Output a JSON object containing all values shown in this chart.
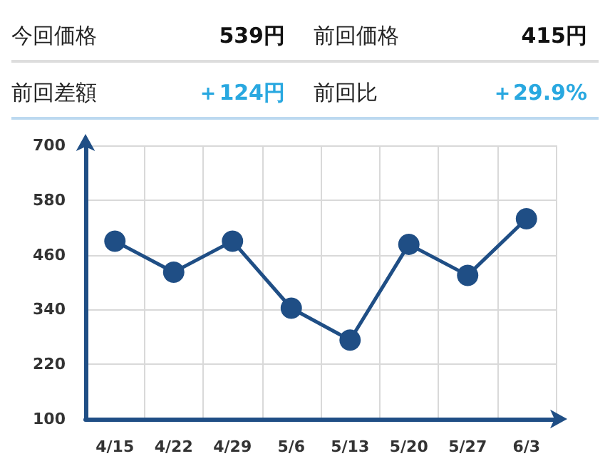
{
  "chart_data": {
    "type": "line",
    "annotations": [
      "今回価格",
      "539円",
      "前回価格",
      "415円",
      "前回差額",
      "＋124円",
      "前回比",
      "＋29.9%"
    ],
    "categories": [
      "4/15",
      "4/22",
      "4/29",
      "5/6",
      "5/13",
      "5/20",
      "5/27",
      "6/3"
    ],
    "series": [
      {
        "color": "#1f4e85",
        "values": [
          490,
          422,
          490,
          343,
          273,
          483,
          415,
          539
        ]
      }
    ],
    "ylim": [
      100,
      700
    ],
    "yticks": [
      100,
      220,
      340,
      460,
      580,
      700
    ],
    "grid": true,
    "marker": "circle",
    "line_style": "solid"
  }
}
